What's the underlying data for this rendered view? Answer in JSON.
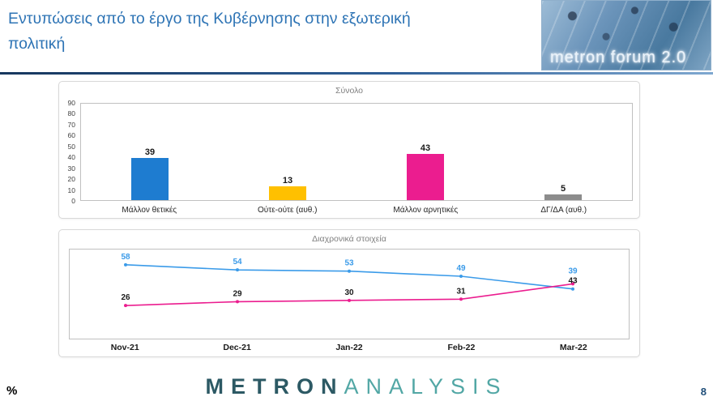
{
  "header": {
    "title_line1": "Εντυπώσεις από το έργο της Κυβέρνησης στην εξωτερική",
    "title_line2": "πολιτική",
    "logo_text": "metron forum 2.0"
  },
  "colors": {
    "title": "#2E74B5",
    "footer_metron": "#2C5964",
    "footer_analysis": "#52A7A5",
    "page_number": "#1F4E79"
  },
  "chart_data": [
    {
      "type": "bar",
      "title": "Σύνολο",
      "categories": [
        "Μάλλον θετικές",
        "Ούτε-ούτε (αυθ.)",
        "Μάλλον αρνητικές",
        "ΔΓ/ΔΑ (αυθ.)"
      ],
      "values": [
        39,
        13,
        43,
        5
      ],
      "colors": [
        "#1E7CD0",
        "#FFC000",
        "#EB1D8F",
        "#8C8C8C"
      ],
      "ylim": [
        0,
        90
      ],
      "ytick_step": 10,
      "grid": false,
      "legend": "none"
    },
    {
      "type": "line",
      "title": "Διαχρονικά στοιχεία",
      "categories": [
        "Nov-21",
        "Dec-21",
        "Jan-22",
        "Feb-22",
        "Mar-22"
      ],
      "series": [
        {
          "color": "#3B9BE9",
          "label_color": "#3B9BE9",
          "values": [
            58,
            54,
            53,
            49,
            39
          ]
        },
        {
          "color": "#EB1D8F",
          "label_color": "#1a1a1a",
          "values": [
            26,
            29,
            30,
            31,
            43
          ]
        }
      ],
      "ylim": [
        0,
        70
      ],
      "grid": false,
      "legend": "none"
    }
  ],
  "footer": {
    "percent_label": "%",
    "logo_metron": "METRON",
    "logo_analysis": "ANALYSIS",
    "page_number": "8"
  }
}
